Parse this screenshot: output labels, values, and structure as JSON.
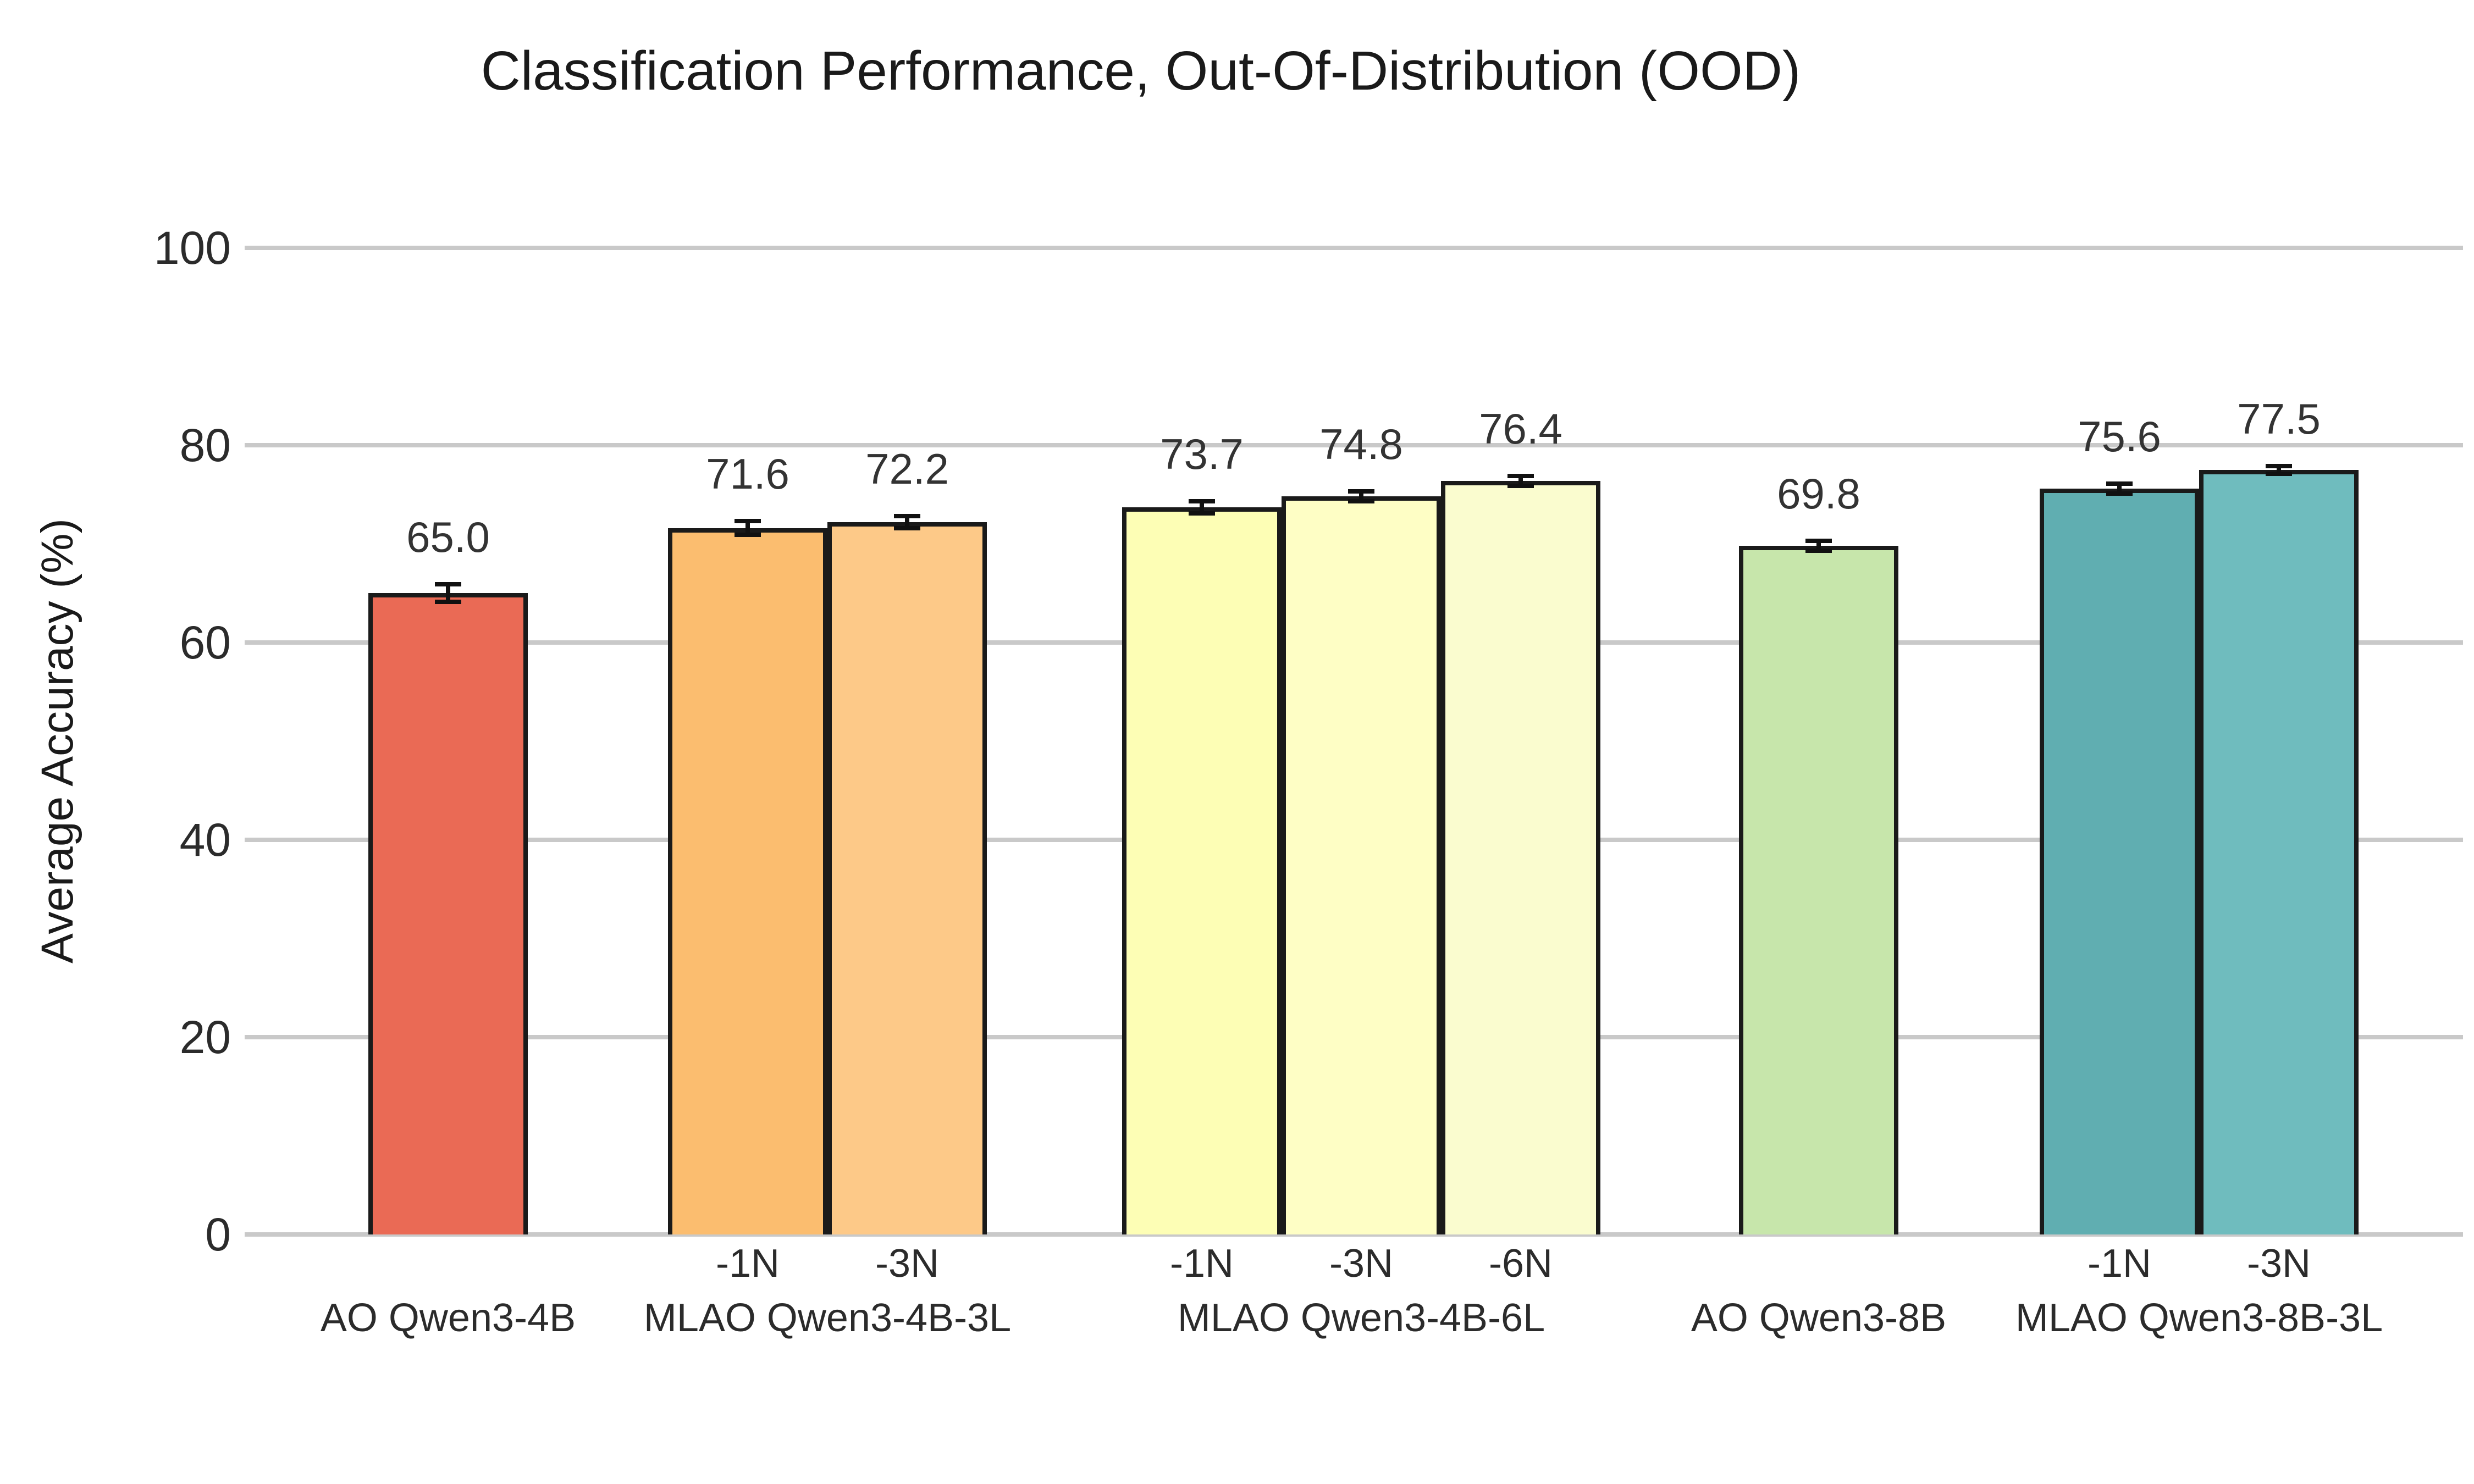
{
  "title": "Classification Performance, Out-Of-Distribution (OOD)",
  "colors": {
    "background": "#ffffff",
    "gridline": "#c9c9c9",
    "bar_edge": "#1a1a1a",
    "error_bar": "#111111",
    "title_text": "#1a1a1a",
    "tick_text": "#2b2b2b",
    "value_text": "#333333"
  },
  "chart_data": {
    "type": "bar",
    "title": "Classification Performance, Out-Of-Distribution (OOD)",
    "xlabel": "",
    "ylabel": "Average Accuracy (%)",
    "ylim": [
      0,
      100
    ],
    "yticks": [
      0,
      20,
      40,
      60,
      80,
      100
    ],
    "grid": "horizontal gridlines on, no axis spines",
    "legend": "none",
    "error_bars": true,
    "groups": [
      {
        "label": "AO Qwen3-4B",
        "bars": [
          {
            "sub_label": null,
            "value": 65.0,
            "error": 0.9,
            "color": "#EA6A55"
          }
        ]
      },
      {
        "label": "MLAO Qwen3-4B-3L",
        "bars": [
          {
            "sub_label": "-1N",
            "value": 71.6,
            "error": 0.7,
            "color": "#FBBD6F"
          },
          {
            "sub_label": "-3N",
            "value": 72.2,
            "error": 0.6,
            "color": "#FDC988"
          }
        ]
      },
      {
        "label": "MLAO Qwen3-4B-6L",
        "bars": [
          {
            "sub_label": "-1N",
            "value": 73.7,
            "error": 0.6,
            "color": "#FDFEB5"
          },
          {
            "sub_label": "-3N",
            "value": 74.8,
            "error": 0.5,
            "color": "#FEFEC5"
          },
          {
            "sub_label": "-6N",
            "value": 76.4,
            "error": 0.5,
            "color": "#FAFCCF"
          }
        ]
      },
      {
        "label": "AO Qwen3-8B",
        "bars": [
          {
            "sub_label": null,
            "value": 69.8,
            "error": 0.5,
            "color": "#C7E6AB"
          }
        ]
      },
      {
        "label": "MLAO Qwen3-8B-3L",
        "bars": [
          {
            "sub_label": "-1N",
            "value": 75.6,
            "error": 0.5,
            "color": "#60AEB1"
          },
          {
            "sub_label": "-3N",
            "value": 77.5,
            "error": 0.4,
            "color": "#6FBCBE"
          }
        ]
      }
    ]
  }
}
